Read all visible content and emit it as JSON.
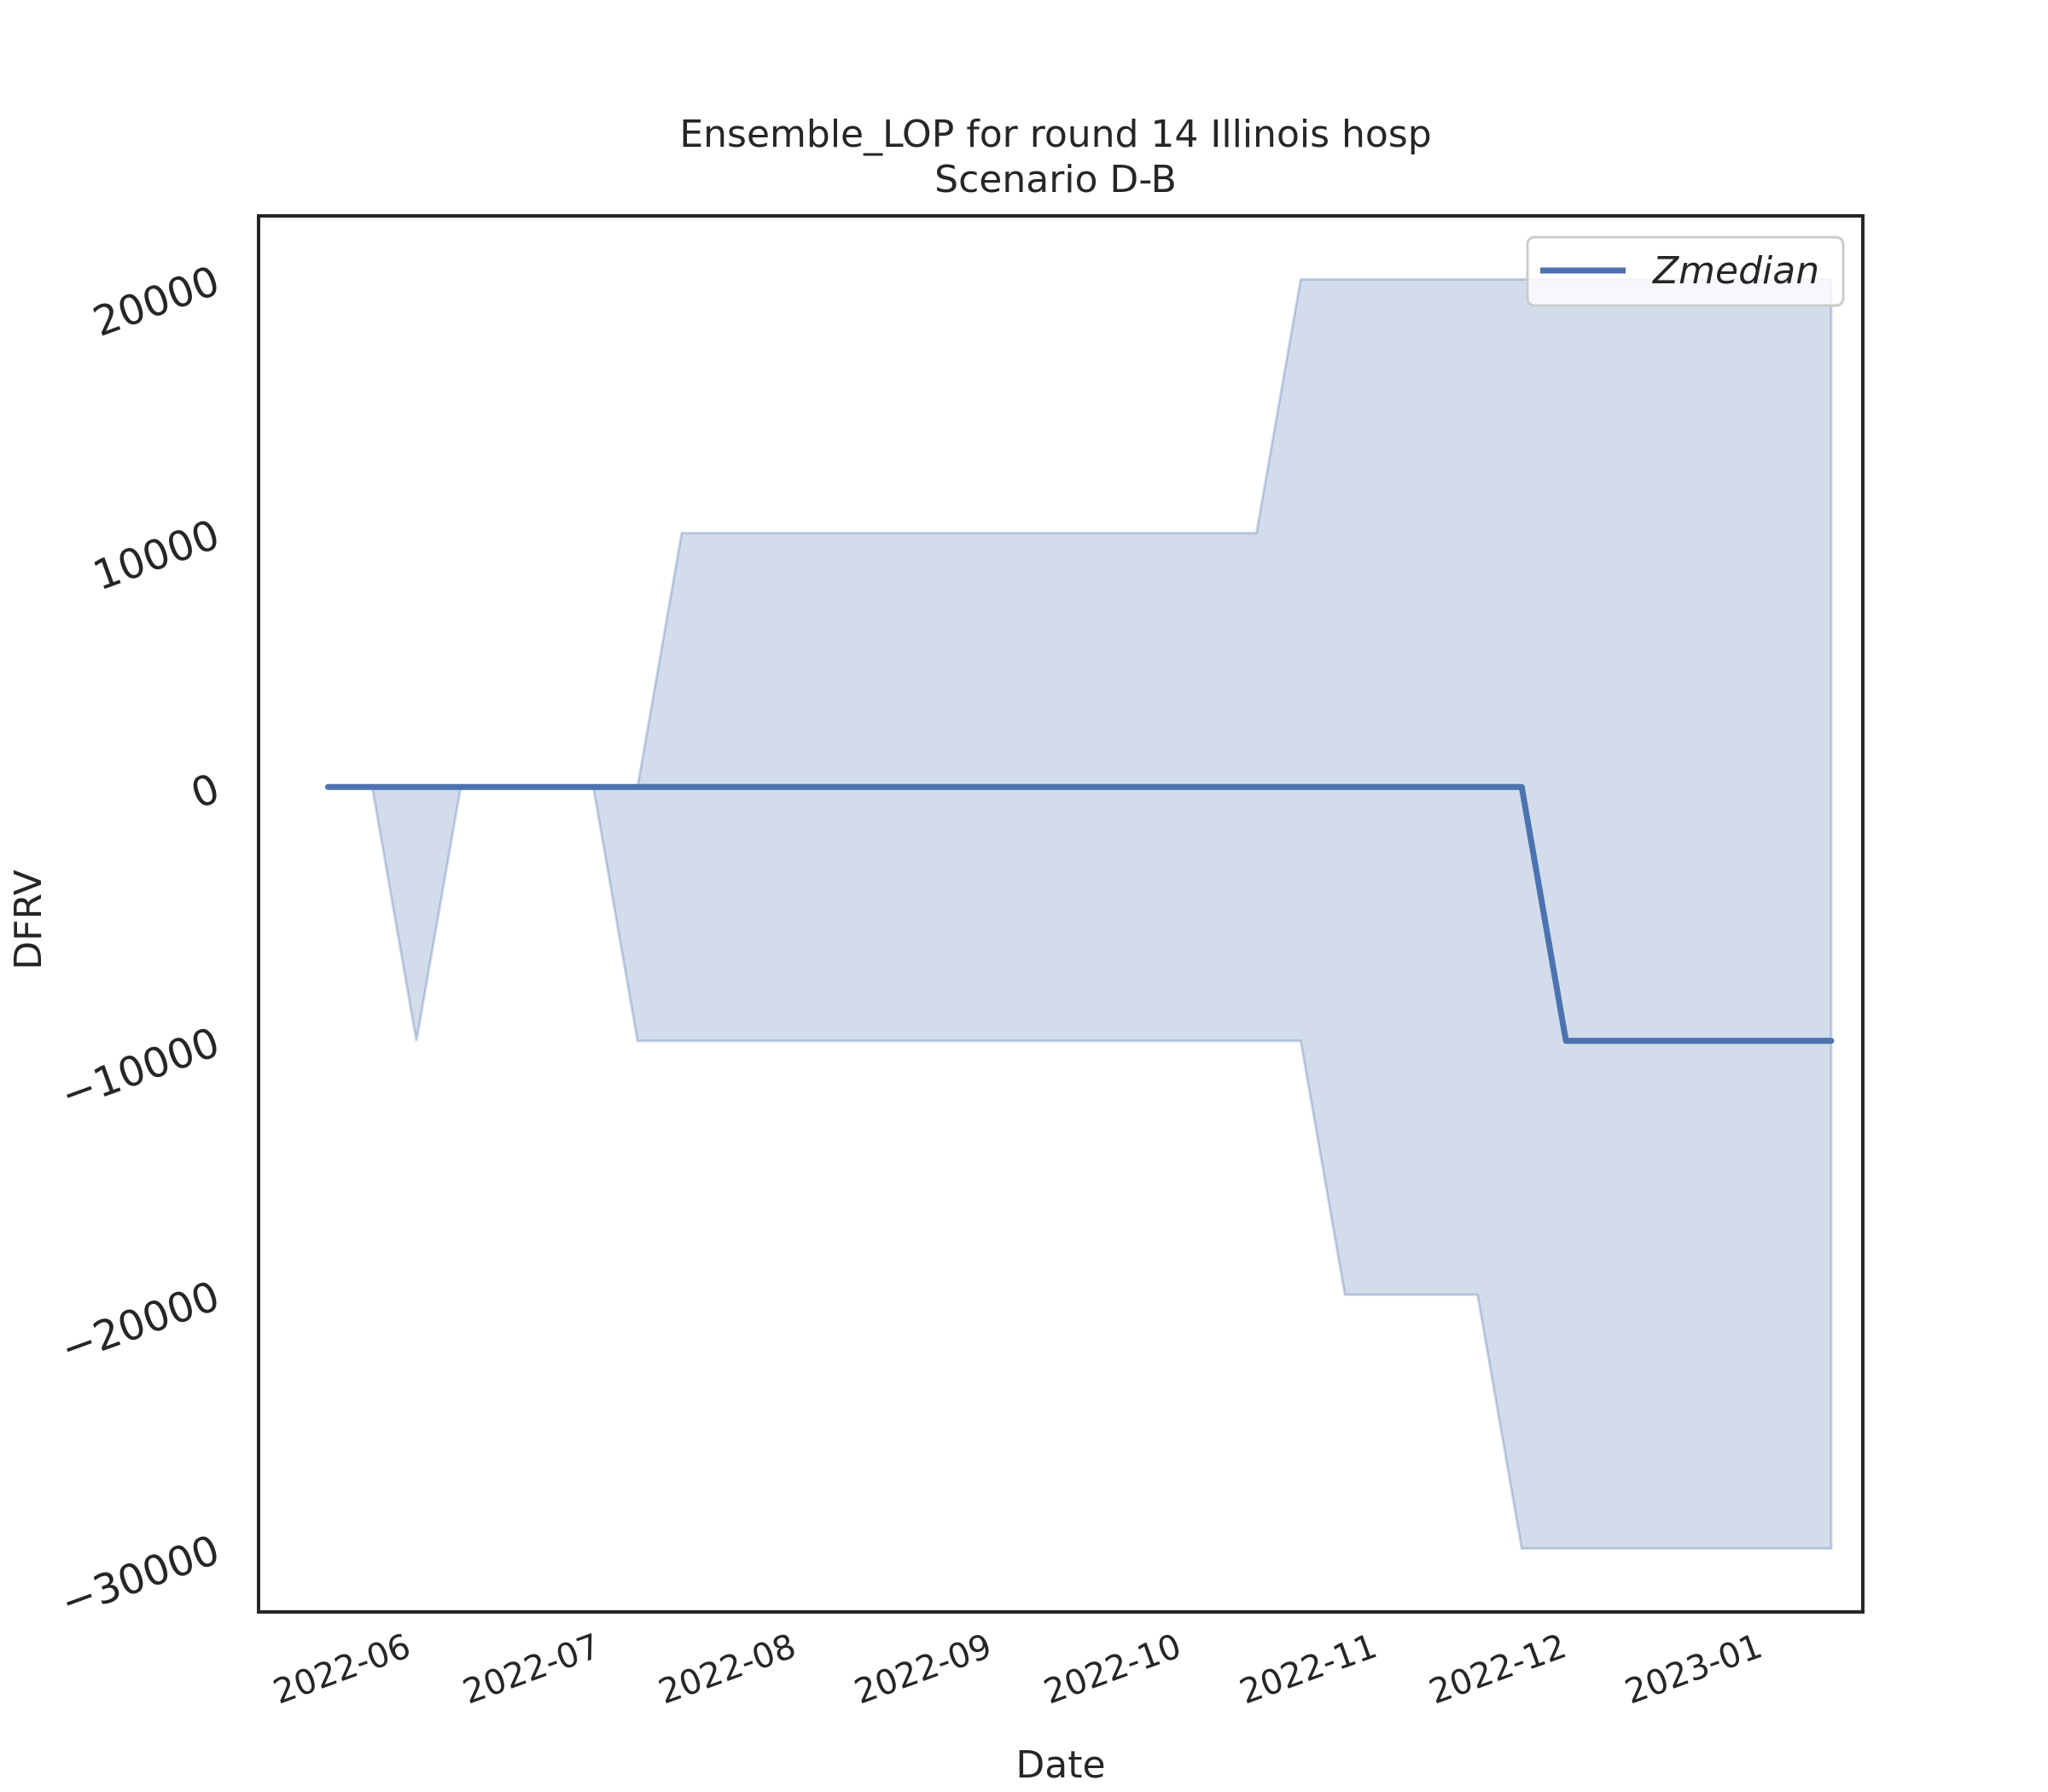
{
  "chart_data": {
    "type": "line",
    "title_line1": "Ensemble_LOP for round 14 Illinois hosp",
    "title_line2": "Scenario D-B",
    "xlabel": "Date",
    "ylabel": "DFRV",
    "ylim": [
      -32500,
      22500
    ],
    "xlim": [
      "2022-05-10",
      "2023-01-19"
    ],
    "grid": false,
    "legend_position": "top-right",
    "yticks": [
      {
        "value": 20000,
        "label": "20000"
      },
      {
        "value": 10000,
        "label": "10000"
      },
      {
        "value": 0,
        "label": "0"
      },
      {
        "value": -10000,
        "label": "−10000"
      },
      {
        "value": -20000,
        "label": "−20000"
      },
      {
        "value": -30000,
        "label": "−30000"
      }
    ],
    "xticks": [
      {
        "date": "2022-06-01",
        "label": "2022-06"
      },
      {
        "date": "2022-07-01",
        "label": "2022-07"
      },
      {
        "date": "2022-08-01",
        "label": "2022-08"
      },
      {
        "date": "2022-09-01",
        "label": "2022-09"
      },
      {
        "date": "2022-10-01",
        "label": "2022-10"
      },
      {
        "date": "2022-11-01",
        "label": "2022-11"
      },
      {
        "date": "2022-12-01",
        "label": "2022-12"
      },
      {
        "date": "2023-01-01",
        "label": "2023-01"
      }
    ],
    "series": [
      {
        "name": "Zmedian",
        "color": "#4c72b0",
        "x": [
          "2022-05-21",
          "2022-05-28",
          "2022-06-04",
          "2022-06-11",
          "2022-06-18",
          "2022-06-25",
          "2022-07-02",
          "2022-07-09",
          "2022-07-16",
          "2022-07-23",
          "2022-07-30",
          "2022-08-06",
          "2022-08-13",
          "2022-08-20",
          "2022-08-27",
          "2022-09-03",
          "2022-09-10",
          "2022-09-17",
          "2022-09-24",
          "2022-10-01",
          "2022-10-08",
          "2022-10-15",
          "2022-10-22",
          "2022-10-29",
          "2022-11-05",
          "2022-11-12",
          "2022-11-19",
          "2022-11-26",
          "2022-12-03",
          "2022-12-10",
          "2022-12-17",
          "2022-12-24",
          "2022-12-31",
          "2023-01-07",
          "2023-01-14"
        ],
        "values": [
          0,
          0,
          0,
          0,
          0,
          0,
          0,
          0,
          0,
          0,
          0,
          0,
          0,
          0,
          0,
          0,
          0,
          0,
          0,
          0,
          0,
          0,
          0,
          0,
          0,
          0,
          0,
          0,
          -10000,
          -10000,
          -10000,
          -10000,
          -10000,
          -10000,
          -10000
        ]
      }
    ],
    "band": {
      "color": "#4c72b0",
      "opacity": 0.25,
      "x": [
        "2022-05-21",
        "2022-05-28",
        "2022-06-04",
        "2022-06-11",
        "2022-06-18",
        "2022-06-25",
        "2022-07-02",
        "2022-07-09",
        "2022-07-16",
        "2022-07-23",
        "2022-07-30",
        "2022-08-06",
        "2022-08-13",
        "2022-08-20",
        "2022-08-27",
        "2022-09-03",
        "2022-09-10",
        "2022-09-17",
        "2022-09-24",
        "2022-10-01",
        "2022-10-08",
        "2022-10-15",
        "2022-10-22",
        "2022-10-29",
        "2022-11-05",
        "2022-11-12",
        "2022-11-19",
        "2022-11-26",
        "2022-12-03",
        "2022-12-10",
        "2022-12-17",
        "2022-12-24",
        "2022-12-31",
        "2023-01-07",
        "2023-01-14"
      ],
      "upper": [
        0,
        0,
        0,
        0,
        0,
        0,
        0,
        0,
        10000,
        10000,
        10000,
        10000,
        10000,
        10000,
        10000,
        10000,
        10000,
        10000,
        10000,
        10000,
        10000,
        10000,
        20000,
        20000,
        20000,
        20000,
        20000,
        20000,
        20000,
        20000,
        20000,
        20000,
        20000,
        20000,
        20000
      ],
      "lower": [
        0,
        0,
        -10000,
        0,
        0,
        0,
        0,
        -10000,
        -10000,
        -10000,
        -10000,
        -10000,
        -10000,
        -10000,
        -10000,
        -10000,
        -10000,
        -10000,
        -10000,
        -10000,
        -10000,
        -10000,
        -10000,
        -20000,
        -20000,
        -20000,
        -20000,
        -30000,
        -30000,
        -30000,
        -30000,
        -30000,
        -30000,
        -30000,
        -30000
      ]
    }
  }
}
